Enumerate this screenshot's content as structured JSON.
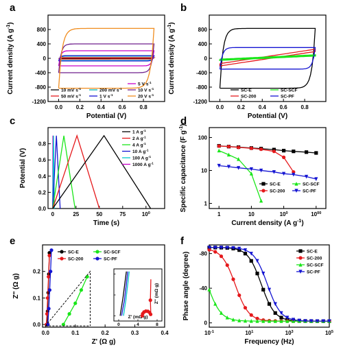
{
  "chart_data": [
    {
      "panel": "a",
      "type": "line",
      "xlabel": "Potential (V)",
      "ylabel": "Current density (A g-1)",
      "xlim": [
        -0.1,
        1.0
      ],
      "ylim": [
        -1200,
        1200
      ],
      "xticks": [
        "0.0",
        "0.2",
        "0.4",
        "0.6",
        "0.8"
      ],
      "yticks": [
        "-1200",
        "-800",
        "-400",
        "0",
        "400",
        "800"
      ],
      "legend_labels": [
        "10 mV s-1",
        "50 mV s-1",
        "200 mV s-1",
        "1 V s-1",
        "5 V s-1",
        "10 V s-1",
        "20 V s-1"
      ],
      "series": [
        {
          "name": "10 mV s-1",
          "color": "#000000",
          "plateau": 5
        },
        {
          "name": "50 mV s-1",
          "color": "#e5191c",
          "plateau": 20
        },
        {
          "name": "200 mV s-1",
          "color": "#00b4b4",
          "plateau": 60
        },
        {
          "name": "1 V s-1",
          "color": "#1414d2",
          "plateau": 75
        },
        {
          "name": "5 V s-1",
          "color": "#c800c8",
          "plateau": 210
        },
        {
          "name": "10 V s-1",
          "color": "#6e1e8c",
          "plateau": 400
        },
        {
          "name": "20 V s-1",
          "color": "#f08c1e",
          "plateau": 830
        }
      ]
    },
    {
      "panel": "b",
      "type": "line",
      "xlabel": "Potential (V)",
      "ylabel": "Current density (A g-1)",
      "xlim": [
        -0.1,
        1.0
      ],
      "ylim": [
        -1200,
        1200
      ],
      "xticks": [
        "0.0",
        "0.2",
        "0.4",
        "0.6",
        "0.8"
      ],
      "yticks": [
        "-1200",
        "-800",
        "-400",
        "0",
        "400",
        "800"
      ],
      "legend_labels": [
        "SC-E",
        "SC-200",
        "SC-SCF",
        "SC-PF"
      ],
      "series": [
        {
          "name": "SC-E",
          "color": "#000000",
          "plateau": 830
        },
        {
          "name": "SC-200",
          "color": "#e5191c",
          "start": -180,
          "end": 220
        },
        {
          "name": "SC-SCF",
          "color": "#19e619",
          "start": -40,
          "end": 80
        },
        {
          "name": "SC-PF",
          "color": "#1414d2",
          "plateau": 300
        }
      ]
    },
    {
      "panel": "c",
      "type": "line",
      "xlabel": "Time (s)",
      "ylabel": "Potential (V)",
      "xlim": [
        -5,
        120
      ],
      "ylim": [
        0,
        1.0
      ],
      "xticks": [
        "0",
        "25",
        "50",
        "75",
        "100"
      ],
      "yticks": [
        "0.0",
        "0.2",
        "0.4",
        "0.6",
        "0.8"
      ],
      "legend_labels": [
        "1 A g-1",
        "2 A g-1",
        "4 A g-1",
        "10 A g-1",
        "100 A g-1",
        "1000 A g-1"
      ],
      "series": [
        {
          "name": "1 A g-1",
          "color": "#000000",
          "t_peak": 55,
          "t_end": 105
        },
        {
          "name": "2 A g-1",
          "color": "#e5191c",
          "t_peak": 26,
          "t_end": 50
        },
        {
          "name": "4 A g-1",
          "color": "#19e619",
          "t_peak": 12,
          "t_end": 24
        },
        {
          "name": "10 A g-1",
          "color": "#1414d2",
          "t_peak": 4,
          "t_end": 8
        },
        {
          "name": "100 A g-1",
          "color": "#00c8c8",
          "t_peak": 0.9,
          "t_end": 1.8
        },
        {
          "name": "1000 A g-1",
          "color": "#c800c8",
          "t_peak": 0.2,
          "t_end": 0.4
        }
      ]
    },
    {
      "panel": "d",
      "type": "line",
      "x_scale": "log",
      "y_scale": "log",
      "xlabel": "Current density (A g-1)",
      "ylabel": "Specific capacitance (F g-1)",
      "xlim": [
        0.5,
        2000
      ],
      "ylim": [
        0.7,
        200
      ],
      "xticks": [
        "1",
        "10",
        "100",
        "1000"
      ],
      "yticks": [
        "1",
        "10",
        "100"
      ],
      "legend_labels": [
        "SC-E",
        "SC-200",
        "SC-SCF",
        "SC-PF"
      ],
      "series": [
        {
          "name": "SC-E",
          "color": "#000000",
          "x": [
            1,
            2,
            4,
            10,
            20,
            50,
            100,
            200,
            500,
            1000
          ],
          "y": [
            56,
            53,
            51,
            48,
            46,
            43,
            40,
            38,
            36,
            34
          ]
        },
        {
          "name": "SC-200",
          "color": "#e5191c",
          "x": [
            1,
            2,
            4,
            10,
            20,
            50,
            100,
            200
          ],
          "y": [
            55,
            53,
            50,
            47,
            44,
            38,
            25,
            9
          ]
        },
        {
          "name": "SC-SCF",
          "color": "#19e619",
          "x": [
            1,
            2,
            4,
            10,
            20
          ],
          "y": [
            40,
            30,
            22,
            8,
            1.2
          ]
        },
        {
          "name": "SC-PF",
          "color": "#1414d2",
          "x": [
            1,
            2,
            4,
            10,
            20,
            50,
            100,
            200,
            500,
            1000
          ],
          "y": [
            14,
            13,
            12,
            11,
            10,
            9,
            8,
            7.5,
            6.5,
            5.5
          ]
        }
      ]
    },
    {
      "panel": "e",
      "type": "line",
      "xlabel": "Z' (Ω g)",
      "ylabel": "Z'' (Ω g)",
      "xlim": [
        -0.01,
        0.4
      ],
      "ylim": [
        -0.01,
        0.3
      ],
      "xticks": [
        "0.0",
        "0.1",
        "0.2",
        "0.3",
        "0.4"
      ],
      "yticks": [
        "0.0",
        "0.1",
        "0.2"
      ],
      "legend_labels": [
        "SC-E",
        "SC-200",
        "SC-SCF",
        "SC-PF"
      ],
      "inset_xlabel": "Z' (mΩ g)",
      "inset_ylabel": "Z'' (mΩ g)",
      "inset_xticks": [
        "0",
        "4",
        "8"
      ],
      "inset_yticks": [
        "0",
        "4",
        "8"
      ],
      "series": [
        {
          "name": "SC-E",
          "color": "#000000",
          "x": [
            0.005,
            0.007,
            0.009,
            0.011,
            0.013
          ],
          "y": [
            0.0,
            0.05,
            0.12,
            0.19,
            0.27
          ]
        },
        {
          "name": "SC-200",
          "color": "#e5191c",
          "x": [
            0.003,
            0.005,
            0.007,
            0.01,
            0.013
          ],
          "y": [
            0.0,
            0.04,
            0.1,
            0.18,
            0.26
          ]
        },
        {
          "name": "SC-SCF",
          "color": "#19e619",
          "x": [
            0.06,
            0.08,
            0.1,
            0.12,
            0.14
          ],
          "y": [
            0.0,
            0.04,
            0.08,
            0.13,
            0.18
          ]
        },
        {
          "name": "SC-PF",
          "color": "#1414d2",
          "x": [
            0.008,
            0.011,
            0.014,
            0.017,
            0.02
          ],
          "y": [
            0.0,
            0.06,
            0.13,
            0.2,
            0.28
          ]
        }
      ]
    },
    {
      "panel": "f",
      "type": "line",
      "x_scale": "log",
      "xlabel": "Frequency (Hz)",
      "ylabel": "Phase angle (degree)",
      "xlim": [
        0.1,
        100000
      ],
      "ylim": [
        0,
        -90
      ],
      "xticks": [
        "10-1",
        "101",
        "103",
        "105"
      ],
      "yticks": [
        "-80",
        "-40",
        "0"
      ],
      "legend_labels": [
        "SC-E",
        "SC-200",
        "SC-SCF",
        "SC-PF"
      ],
      "series": [
        {
          "name": "SC-E",
          "color": "#000000",
          "plateau": -85,
          "f_half": 40
        },
        {
          "name": "SC-200",
          "color": "#e5191c",
          "plateau": -84,
          "f_half": 2
        },
        {
          "name": "SC-SCF",
          "color": "#19e619",
          "plateau": -85,
          "f_half": 0.08
        },
        {
          "name": "SC-PF",
          "color": "#1414d2",
          "plateau": -85,
          "f_half": 80
        }
      ]
    }
  ],
  "panel_letters": [
    "a",
    "b",
    "c",
    "d",
    "e",
    "f"
  ]
}
